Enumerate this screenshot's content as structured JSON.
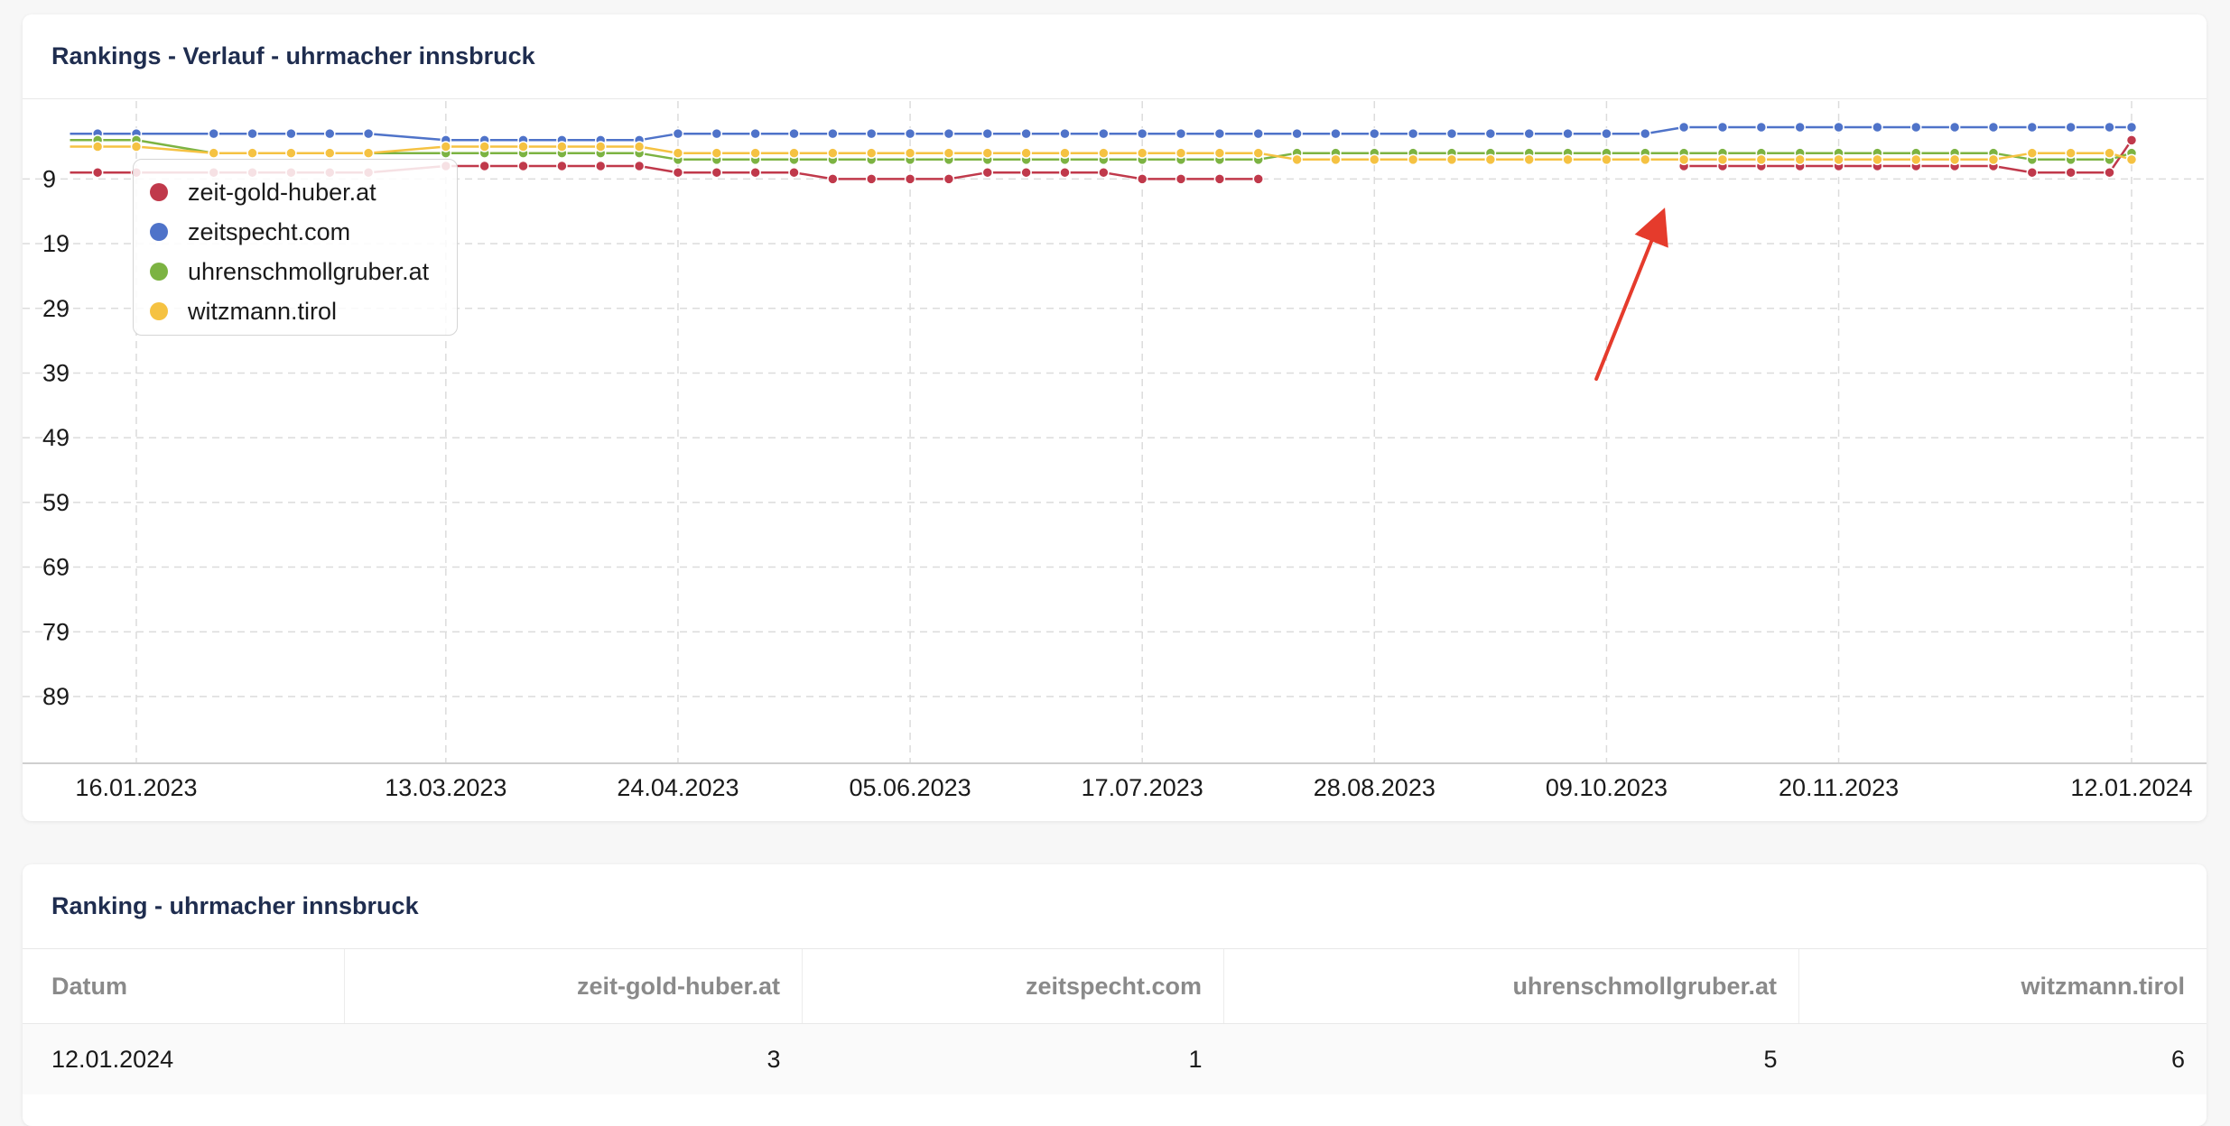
{
  "chart_card": {
    "title": "Rankings - Verlauf - uhrmacher innsbruck"
  },
  "table_card": {
    "title": "Ranking - uhrmacher innsbruck",
    "columns": [
      "Datum",
      "zeit-gold-huber.at",
      "zeitspecht.com",
      "uhrenschmollgruber.at",
      "witzmann.tirol"
    ],
    "rows": [
      [
        "12.01.2024",
        "3",
        "1",
        "5",
        "6"
      ]
    ]
  },
  "chart_data": {
    "type": "line",
    "title": "Rankings - Verlauf - uhrmacher innsbruck",
    "xlabel": "",
    "ylabel": "",
    "y_reversed": true,
    "ylim": [
      1,
      99
    ],
    "y_ticks": [
      9,
      19,
      29,
      39,
      49,
      59,
      69,
      79,
      89
    ],
    "x_range": [
      "2023-01-04",
      "2024-01-12"
    ],
    "x_ticks": [
      "16.01.2023",
      "13.03.2023",
      "24.04.2023",
      "05.06.2023",
      "17.07.2023",
      "28.08.2023",
      "09.10.2023",
      "20.11.2023",
      "12.01.2024"
    ],
    "x_tick_dates": [
      "2023-01-16",
      "2023-03-13",
      "2023-04-24",
      "2023-06-05",
      "2023-07-17",
      "2023-08-28",
      "2023-10-09",
      "2023-11-20",
      "2024-01-12"
    ],
    "grid": true,
    "legend_position": "top-left",
    "annotation": "red arrow pointing to zeit-gold-huber.at around 23.10.2023",
    "series": [
      {
        "name": "zeit-gold-huber.at",
        "color": "#c0394b",
        "points": [
          [
            "2023-01-04",
            8
          ],
          [
            "2023-01-09",
            8
          ],
          [
            "2023-01-16",
            8
          ],
          [
            "2023-01-30",
            8
          ],
          [
            "2023-02-06",
            8
          ],
          [
            "2023-02-13",
            8
          ],
          [
            "2023-02-20",
            8
          ],
          [
            "2023-02-27",
            8
          ],
          [
            "2023-03-13",
            7
          ],
          [
            "2023-03-20",
            7
          ],
          [
            "2023-03-27",
            7
          ],
          [
            "2023-04-03",
            7
          ],
          [
            "2023-04-10",
            7
          ],
          [
            "2023-04-17",
            7
          ],
          [
            "2023-04-24",
            8
          ],
          [
            "2023-05-01",
            8
          ],
          [
            "2023-05-08",
            8
          ],
          [
            "2023-05-15",
            8
          ],
          [
            "2023-05-22",
            9
          ],
          [
            "2023-05-29",
            9
          ],
          [
            "2023-06-05",
            9
          ],
          [
            "2023-06-12",
            9
          ],
          [
            "2023-06-19",
            8
          ],
          [
            "2023-06-26",
            8
          ],
          [
            "2023-07-03",
            8
          ],
          [
            "2023-07-10",
            8
          ],
          [
            "2023-07-17",
            9
          ],
          [
            "2023-07-24",
            9
          ],
          [
            "2023-07-31",
            9
          ],
          [
            "2023-08-07",
            9
          ],
          null,
          [
            "2023-10-23",
            7
          ],
          [
            "2023-10-30",
            7
          ],
          [
            "2023-11-06",
            7
          ],
          [
            "2023-11-13",
            7
          ],
          [
            "2023-11-20",
            7
          ],
          [
            "2023-11-27",
            7
          ],
          [
            "2023-12-04",
            7
          ],
          [
            "2023-12-11",
            7
          ],
          [
            "2023-12-18",
            7
          ],
          [
            "2023-12-25",
            8
          ],
          [
            "2024-01-01",
            8
          ],
          [
            "2024-01-08",
            8
          ],
          [
            "2024-01-12",
            3
          ]
        ]
      },
      {
        "name": "zeitspecht.com",
        "color": "#4f73c9",
        "points": [
          [
            "2023-01-04",
            2
          ],
          [
            "2023-01-09",
            2
          ],
          [
            "2023-01-16",
            2
          ],
          [
            "2023-01-30",
            2
          ],
          [
            "2023-02-06",
            2
          ],
          [
            "2023-02-13",
            2
          ],
          [
            "2023-02-20",
            2
          ],
          [
            "2023-02-27",
            2
          ],
          [
            "2023-03-13",
            3
          ],
          [
            "2023-03-20",
            3
          ],
          [
            "2023-03-27",
            3
          ],
          [
            "2023-04-03",
            3
          ],
          [
            "2023-04-10",
            3
          ],
          [
            "2023-04-17",
            3
          ],
          [
            "2023-04-24",
            2
          ],
          [
            "2023-05-01",
            2
          ],
          [
            "2023-05-08",
            2
          ],
          [
            "2023-05-15",
            2
          ],
          [
            "2023-05-22",
            2
          ],
          [
            "2023-05-29",
            2
          ],
          [
            "2023-06-05",
            2
          ],
          [
            "2023-06-12",
            2
          ],
          [
            "2023-06-19",
            2
          ],
          [
            "2023-06-26",
            2
          ],
          [
            "2023-07-03",
            2
          ],
          [
            "2023-07-10",
            2
          ],
          [
            "2023-07-17",
            2
          ],
          [
            "2023-07-24",
            2
          ],
          [
            "2023-07-31",
            2
          ],
          [
            "2023-08-07",
            2
          ],
          [
            "2023-08-14",
            2
          ],
          [
            "2023-08-21",
            2
          ],
          [
            "2023-08-28",
            2
          ],
          [
            "2023-09-04",
            2
          ],
          [
            "2023-09-11",
            2
          ],
          [
            "2023-09-18",
            2
          ],
          [
            "2023-09-25",
            2
          ],
          [
            "2023-10-02",
            2
          ],
          [
            "2023-10-09",
            2
          ],
          [
            "2023-10-16",
            2
          ],
          [
            "2023-10-23",
            1
          ],
          [
            "2023-10-30",
            1
          ],
          [
            "2023-11-06",
            1
          ],
          [
            "2023-11-13",
            1
          ],
          [
            "2023-11-20",
            1
          ],
          [
            "2023-11-27",
            1
          ],
          [
            "2023-12-04",
            1
          ],
          [
            "2023-12-11",
            1
          ],
          [
            "2023-12-18",
            1
          ],
          [
            "2023-12-25",
            1
          ],
          [
            "2024-01-01",
            1
          ],
          [
            "2024-01-08",
            1
          ],
          [
            "2024-01-12",
            1
          ]
        ]
      },
      {
        "name": "uhrenschmollgruber.at",
        "color": "#7cb342",
        "points": [
          [
            "2023-01-04",
            3
          ],
          [
            "2023-01-09",
            3
          ],
          [
            "2023-01-16",
            3
          ],
          [
            "2023-01-30",
            5
          ],
          [
            "2023-02-06",
            5
          ],
          [
            "2023-02-13",
            5
          ],
          [
            "2023-02-20",
            5
          ],
          [
            "2023-02-27",
            5
          ],
          [
            "2023-03-13",
            5
          ],
          [
            "2023-03-20",
            5
          ],
          [
            "2023-03-27",
            5
          ],
          [
            "2023-04-03",
            5
          ],
          [
            "2023-04-10",
            5
          ],
          [
            "2023-04-17",
            5
          ],
          [
            "2023-04-24",
            6
          ],
          [
            "2023-05-01",
            6
          ],
          [
            "2023-05-08",
            6
          ],
          [
            "2023-05-15",
            6
          ],
          [
            "2023-05-22",
            6
          ],
          [
            "2023-05-29",
            6
          ],
          [
            "2023-06-05",
            6
          ],
          [
            "2023-06-12",
            6
          ],
          [
            "2023-06-19",
            6
          ],
          [
            "2023-06-26",
            6
          ],
          [
            "2023-07-03",
            6
          ],
          [
            "2023-07-10",
            6
          ],
          [
            "2023-07-17",
            6
          ],
          [
            "2023-07-24",
            6
          ],
          [
            "2023-07-31",
            6
          ],
          [
            "2023-08-07",
            6
          ],
          [
            "2023-08-14",
            5
          ],
          [
            "2023-08-21",
            5
          ],
          [
            "2023-08-28",
            5
          ],
          [
            "2023-09-04",
            5
          ],
          [
            "2023-09-11",
            5
          ],
          [
            "2023-09-18",
            5
          ],
          [
            "2023-09-25",
            5
          ],
          [
            "2023-10-02",
            5
          ],
          [
            "2023-10-09",
            5
          ],
          [
            "2023-10-16",
            5
          ],
          [
            "2023-10-23",
            5
          ],
          [
            "2023-10-30",
            5
          ],
          [
            "2023-11-06",
            5
          ],
          [
            "2023-11-13",
            5
          ],
          [
            "2023-11-20",
            5
          ],
          [
            "2023-11-27",
            5
          ],
          [
            "2023-12-04",
            5
          ],
          [
            "2023-12-11",
            5
          ],
          [
            "2023-12-18",
            5
          ],
          [
            "2023-12-25",
            6
          ],
          [
            "2024-01-01",
            6
          ],
          [
            "2024-01-08",
            6
          ],
          [
            "2024-01-12",
            5
          ]
        ]
      },
      {
        "name": "witzmann.tirol",
        "color": "#f5c242",
        "points": [
          [
            "2023-01-04",
            4
          ],
          [
            "2023-01-09",
            4
          ],
          [
            "2023-01-16",
            4
          ],
          [
            "2023-01-30",
            5
          ],
          [
            "2023-02-06",
            5
          ],
          [
            "2023-02-13",
            5
          ],
          [
            "2023-02-20",
            5
          ],
          [
            "2023-02-27",
            5
          ],
          [
            "2023-03-13",
            4
          ],
          [
            "2023-03-20",
            4
          ],
          [
            "2023-03-27",
            4
          ],
          [
            "2023-04-03",
            4
          ],
          [
            "2023-04-10",
            4
          ],
          [
            "2023-04-17",
            4
          ],
          [
            "2023-04-24",
            5
          ],
          [
            "2023-05-01",
            5
          ],
          [
            "2023-05-08",
            5
          ],
          [
            "2023-05-15",
            5
          ],
          [
            "2023-05-22",
            5
          ],
          [
            "2023-05-29",
            5
          ],
          [
            "2023-06-05",
            5
          ],
          [
            "2023-06-12",
            5
          ],
          [
            "2023-06-19",
            5
          ],
          [
            "2023-06-26",
            5
          ],
          [
            "2023-07-03",
            5
          ],
          [
            "2023-07-10",
            5
          ],
          [
            "2023-07-17",
            5
          ],
          [
            "2023-07-24",
            5
          ],
          [
            "2023-07-31",
            5
          ],
          [
            "2023-08-07",
            5
          ],
          [
            "2023-08-14",
            6
          ],
          [
            "2023-08-21",
            6
          ],
          [
            "2023-08-28",
            6
          ],
          [
            "2023-09-04",
            6
          ],
          [
            "2023-09-11",
            6
          ],
          [
            "2023-09-18",
            6
          ],
          [
            "2023-09-25",
            6
          ],
          [
            "2023-10-02",
            6
          ],
          [
            "2023-10-09",
            6
          ],
          [
            "2023-10-16",
            6
          ],
          [
            "2023-10-23",
            6
          ],
          [
            "2023-10-30",
            6
          ],
          [
            "2023-11-06",
            6
          ],
          [
            "2023-11-13",
            6
          ],
          [
            "2023-11-20",
            6
          ],
          [
            "2023-11-27",
            6
          ],
          [
            "2023-12-04",
            6
          ],
          [
            "2023-12-11",
            6
          ],
          [
            "2023-12-18",
            6
          ],
          [
            "2023-12-25",
            5
          ],
          [
            "2024-01-01",
            5
          ],
          [
            "2024-01-08",
            5
          ],
          [
            "2024-01-12",
            6
          ]
        ]
      }
    ]
  }
}
